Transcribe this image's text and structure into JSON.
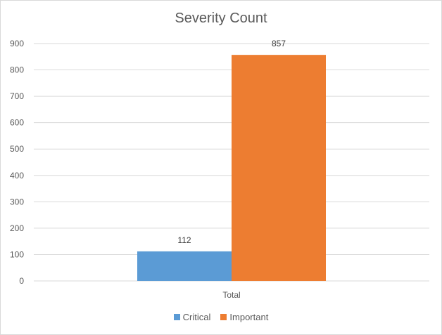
{
  "chart_data": {
    "type": "bar",
    "title": "Severity Count",
    "categories": [
      "Total"
    ],
    "series": [
      {
        "name": "Critical",
        "values": [
          112
        ],
        "color": "#5b9bd5"
      },
      {
        "name": "Important",
        "values": [
          857
        ],
        "color": "#ed7d31"
      }
    ],
    "ylim": [
      0,
      900
    ],
    "yticks": [
      "0",
      "100",
      "200",
      "300",
      "400",
      "500",
      "600",
      "700",
      "800",
      "900"
    ],
    "grid": true,
    "legend_position": "bottom"
  }
}
